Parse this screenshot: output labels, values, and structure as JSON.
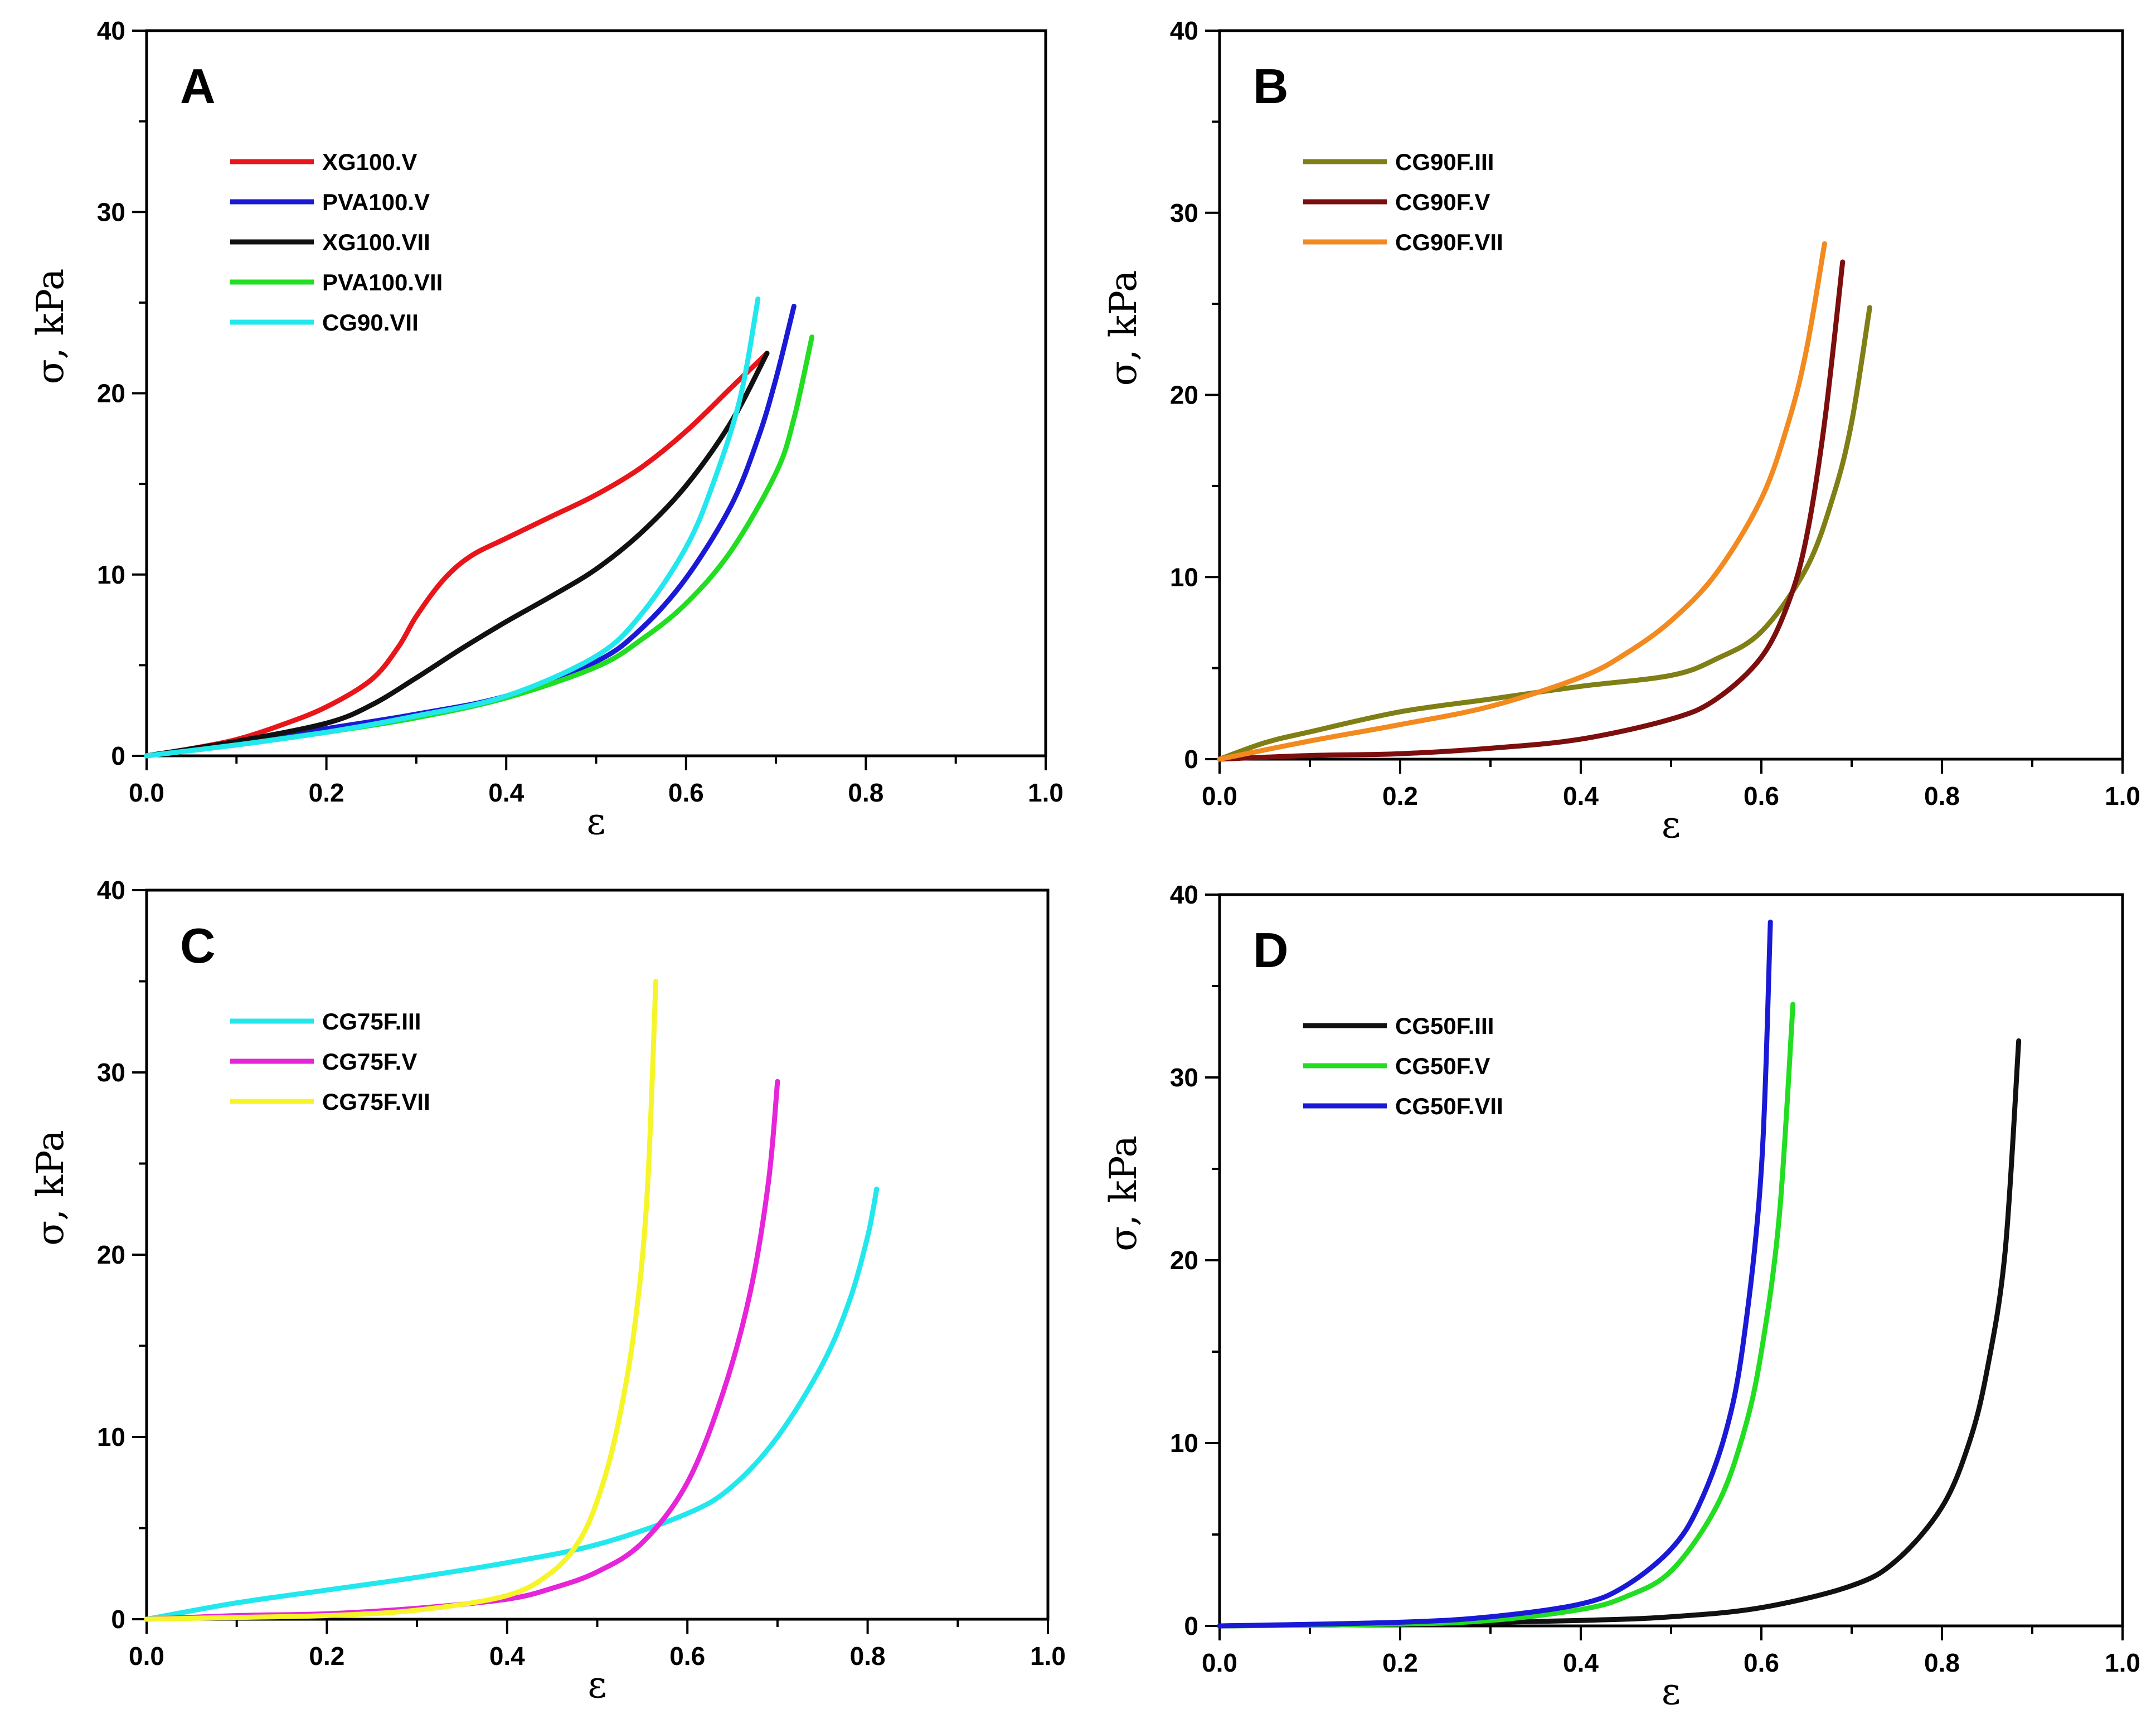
{
  "chart_data": [
    {
      "type": "line",
      "panel": "A",
      "xlabel": "ε",
      "ylabel": "σ, kPa",
      "xlim": [
        0,
        1
      ],
      "ylim": [
        0,
        40
      ],
      "xticks": [
        "0.0",
        "0.2",
        "0.4",
        "0.6",
        "0.8",
        "1.0"
      ],
      "yticks": [
        "0",
        "10",
        "20",
        "30",
        "40"
      ],
      "legend_position": "top-left",
      "series": [
        {
          "name": "XG100.V",
          "color": "#e8161b",
          "x": [
            0,
            0.05,
            0.1,
            0.15,
            0.2,
            0.25,
            0.28,
            0.3,
            0.33,
            0.36,
            0.4,
            0.45,
            0.5,
            0.55,
            0.6,
            0.65,
            0.69
          ],
          "y": [
            0,
            0.4,
            0.9,
            1.7,
            2.7,
            4.2,
            6.0,
            7.7,
            9.7,
            11.0,
            12.0,
            13.2,
            14.4,
            15.9,
            17.9,
            20.3,
            22.2
          ]
        },
        {
          "name": "PVA100.V",
          "color": "#1a1ad6",
          "x": [
            0,
            0.1,
            0.2,
            0.3,
            0.4,
            0.5,
            0.55,
            0.6,
            0.65,
            0.68,
            0.7,
            0.72
          ],
          "y": [
            0,
            0.7,
            1.5,
            2.3,
            3.3,
            5.2,
            7.0,
            9.8,
            13.8,
            17.5,
            20.8,
            24.8
          ]
        },
        {
          "name": "XG100.VII",
          "color": "#111111",
          "x": [
            0,
            0.1,
            0.2,
            0.25,
            0.3,
            0.35,
            0.4,
            0.45,
            0.5,
            0.55,
            0.6,
            0.65,
            0.69
          ],
          "y": [
            0,
            0.8,
            1.8,
            2.8,
            4.3,
            5.9,
            7.4,
            8.8,
            10.3,
            12.3,
            14.9,
            18.4,
            22.2
          ]
        },
        {
          "name": "PVA100.VII",
          "color": "#22dd22",
          "x": [
            0,
            0.1,
            0.2,
            0.3,
            0.4,
            0.5,
            0.55,
            0.6,
            0.65,
            0.7,
            0.72,
            0.74
          ],
          "y": [
            0,
            0.6,
            1.3,
            2.1,
            3.2,
            4.9,
            6.4,
            8.4,
            11.3,
            15.6,
            18.6,
            23.1
          ]
        },
        {
          "name": "CG90.VII",
          "color": "#22e8ee",
          "x": [
            0,
            0.1,
            0.2,
            0.3,
            0.4,
            0.5,
            0.55,
            0.6,
            0.63,
            0.66,
            0.68
          ],
          "y": [
            0,
            0.6,
            1.3,
            2.2,
            3.3,
            5.5,
            7.8,
            11.5,
            15.0,
            19.7,
            25.2
          ]
        }
      ]
    },
    {
      "type": "line",
      "panel": "B",
      "xlabel": "ε",
      "ylabel": "σ, kPa",
      "xlim": [
        0,
        1
      ],
      "ylim": [
        0,
        40
      ],
      "xticks": [
        "0.0",
        "0.2",
        "0.4",
        "0.6",
        "0.8",
        "1.0"
      ],
      "yticks": [
        "0",
        "10",
        "20",
        "30",
        "40"
      ],
      "legend_position": "top-left",
      "series": [
        {
          "name": "CG90F.III",
          "color": "#7f7f16",
          "x": [
            0,
            0.05,
            0.1,
            0.2,
            0.3,
            0.4,
            0.5,
            0.55,
            0.6,
            0.65,
            0.68,
            0.7,
            0.72
          ],
          "y": [
            0,
            0.9,
            1.5,
            2.6,
            3.3,
            4.0,
            4.6,
            5.5,
            7.0,
            10.5,
            14.5,
            18.5,
            24.8
          ]
        },
        {
          "name": "CG90F.V",
          "color": "#7d0e0e",
          "x": [
            0,
            0.1,
            0.2,
            0.3,
            0.4,
            0.5,
            0.55,
            0.6,
            0.63,
            0.65,
            0.67,
            0.69
          ],
          "y": [
            0,
            0.2,
            0.3,
            0.6,
            1.1,
            2.2,
            3.3,
            5.6,
            8.6,
            12.2,
            18.5,
            27.3
          ]
        },
        {
          "name": "CG90F.VII",
          "color": "#f28a1f",
          "x": [
            0,
            0.1,
            0.2,
            0.3,
            0.4,
            0.45,
            0.5,
            0.55,
            0.6,
            0.63,
            0.65,
            0.67
          ],
          "y": [
            0,
            1.0,
            1.9,
            2.9,
            4.5,
            5.8,
            7.6,
            10.2,
            14.3,
            18.5,
            22.5,
            28.3
          ]
        }
      ]
    },
    {
      "type": "line",
      "panel": "C",
      "xlabel": "ε",
      "ylabel": "σ, kPa",
      "xlim": [
        0,
        1
      ],
      "ylim": [
        0,
        40
      ],
      "xticks": [
        "0.0",
        "0.2",
        "0.4",
        "0.6",
        "0.8",
        "1.0"
      ],
      "yticks": [
        "0",
        "10",
        "20",
        "30",
        "40"
      ],
      "legend_position": "top-left",
      "series": [
        {
          "name": "CG75F.III",
          "color": "#22e8ee",
          "x": [
            0,
            0.1,
            0.2,
            0.3,
            0.4,
            0.5,
            0.6,
            0.65,
            0.7,
            0.75,
            0.78,
            0.8,
            0.81
          ],
          "y": [
            0,
            0.9,
            1.6,
            2.3,
            3.1,
            4.1,
            5.8,
            7.3,
            10.0,
            14.0,
            17.5,
            21.0,
            23.6
          ]
        },
        {
          "name": "CG75F.V",
          "color": "#e625d9",
          "x": [
            0,
            0.1,
            0.2,
            0.3,
            0.4,
            0.45,
            0.5,
            0.55,
            0.6,
            0.64,
            0.67,
            0.69,
            0.7
          ],
          "y": [
            0,
            0.2,
            0.3,
            0.6,
            1.1,
            1.7,
            2.6,
            4.2,
            7.5,
            12.5,
            18.0,
            24.0,
            29.5
          ]
        },
        {
          "name": "CG75F.VII",
          "color": "#f5f52a",
          "x": [
            0,
            0.1,
            0.2,
            0.3,
            0.4,
            0.45,
            0.48,
            0.5,
            0.52,
            0.54,
            0.555,
            0.565
          ],
          "y": [
            0,
            0.1,
            0.2,
            0.5,
            1.3,
            2.6,
            4.3,
            6.5,
            10.0,
            15.5,
            23.0,
            35.0
          ]
        }
      ]
    },
    {
      "type": "line",
      "panel": "D",
      "xlabel": "ε",
      "ylabel": "σ, kPa",
      "xlim": [
        0,
        1
      ],
      "ylim": [
        0,
        40
      ],
      "xticks": [
        "0.0",
        "0.2",
        "0.4",
        "0.6",
        "0.8",
        "1.0"
      ],
      "yticks": [
        "0",
        "10",
        "20",
        "30",
        "40"
      ],
      "legend_position": "top-left",
      "series": [
        {
          "name": "CG50F.III",
          "color": "#111111",
          "x": [
            0,
            0.2,
            0.4,
            0.5,
            0.6,
            0.7,
            0.75,
            0.8,
            0.83,
            0.85,
            0.87,
            0.885
          ],
          "y": [
            0,
            0.1,
            0.3,
            0.5,
            1.0,
            2.2,
            3.6,
            6.5,
            10.0,
            14.0,
            20.5,
            32.0
          ]
        },
        {
          "name": "CG50F.V",
          "color": "#22dd22",
          "x": [
            0,
            0.2,
            0.3,
            0.4,
            0.45,
            0.5,
            0.55,
            0.58,
            0.6,
            0.62,
            0.635
          ],
          "y": [
            0,
            0.1,
            0.3,
            0.9,
            1.6,
            3.0,
            6.5,
            10.5,
            15.0,
            22.5,
            34.0
          ]
        },
        {
          "name": "CG50F.VII",
          "color": "#1a1ad6",
          "x": [
            0,
            0.2,
            0.3,
            0.4,
            0.45,
            0.5,
            0.53,
            0.56,
            0.58,
            0.6,
            0.61
          ],
          "y": [
            0,
            0.2,
            0.5,
            1.2,
            2.2,
            4.2,
            6.5,
            10.5,
            15.5,
            25.0,
            38.5
          ]
        }
      ]
    }
  ]
}
